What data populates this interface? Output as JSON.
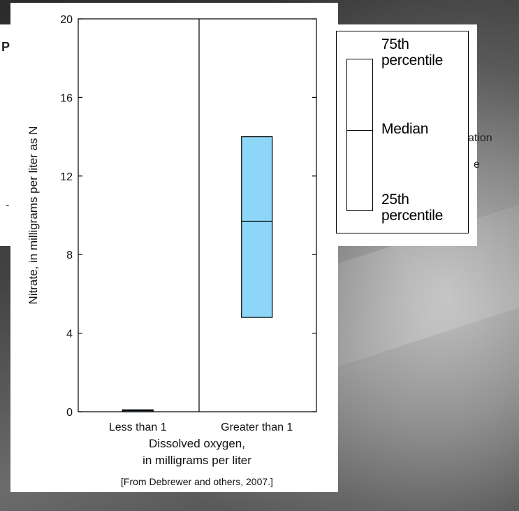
{
  "chart_data": {
    "type": "box",
    "ylabel": "Nitrate, in milligrams per liter as N",
    "xlabel_line1": "Dissolved oxygen,",
    "xlabel_line2": "in milligrams per liter",
    "source": "[From Debrewer and others, 2007.]",
    "ylim": [
      0,
      20
    ],
    "yticks": [
      0,
      4,
      8,
      12,
      16,
      20
    ],
    "categories": [
      "Less than 1",
      "Greater than 1"
    ],
    "boxes": [
      {
        "category": "Less than 1",
        "p25": 0.0,
        "median": 0.05,
        "p75": 0.1
      },
      {
        "category": "Greater than 1",
        "p25": 4.8,
        "median": 9.7,
        "p75": 14.0
      }
    ],
    "box_color": "#8dd6f7",
    "grid": false
  },
  "legend": {
    "top_label_line1": "75th",
    "top_label_line2": "percentile",
    "middle_label": "Median",
    "bottom_label_line1": "25th",
    "bottom_label_line2": "percentile"
  },
  "background_slide": {
    "frag_title": "PL",
    "frag_right1": "ation",
    "frag_right2": "e",
    "frag_left": "-"
  }
}
